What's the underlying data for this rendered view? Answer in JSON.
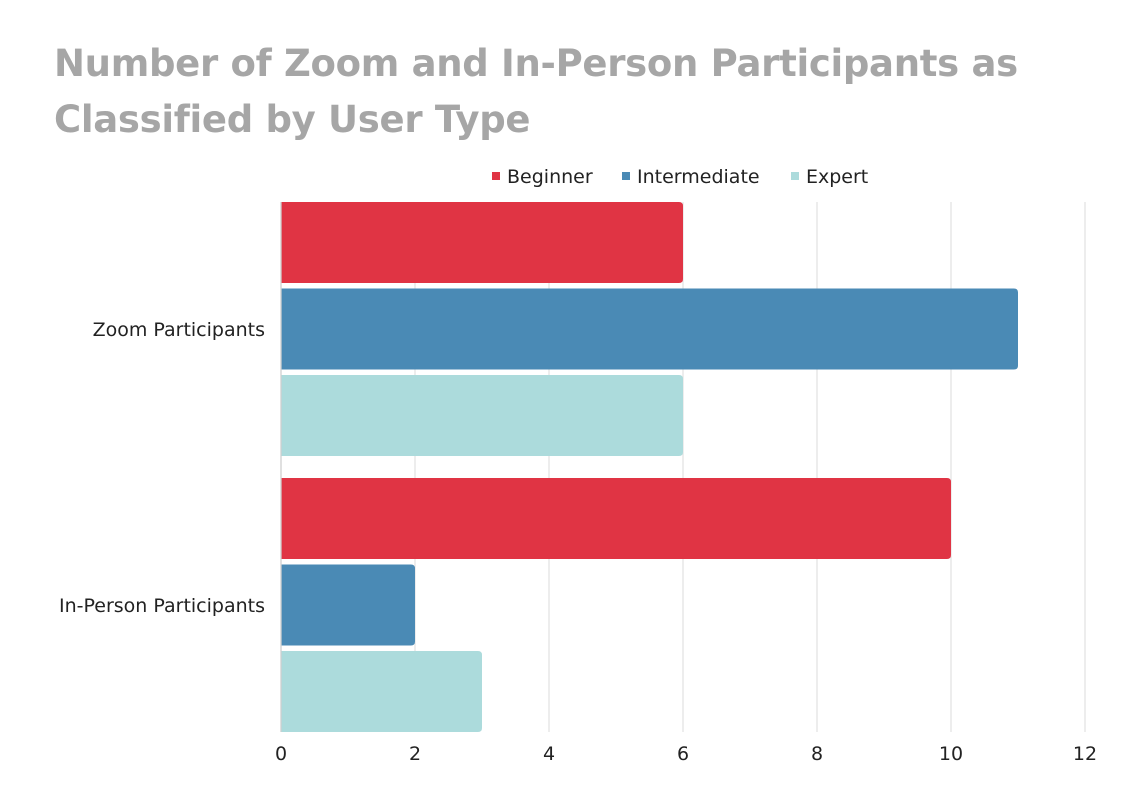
{
  "chart_data": {
    "type": "bar",
    "orientation": "horizontal",
    "title": "Number of Zoom and In-Person Participants as Classified by User Type",
    "categories": [
      "Zoom Participants",
      "In-Person Participants"
    ],
    "series": [
      {
        "name": "Beginner",
        "values": [
          6,
          10
        ],
        "color": "#e03444"
      },
      {
        "name": "Intermediate",
        "values": [
          11,
          2
        ],
        "color": "#4a8ab5"
      },
      {
        "name": "Expert",
        "values": [
          6,
          3
        ],
        "color": "#acdbdc"
      }
    ],
    "xlim": [
      0,
      12
    ],
    "x_ticks": [
      0,
      2,
      4,
      6,
      8,
      10,
      12
    ],
    "grid": true,
    "legend_position": "top"
  }
}
